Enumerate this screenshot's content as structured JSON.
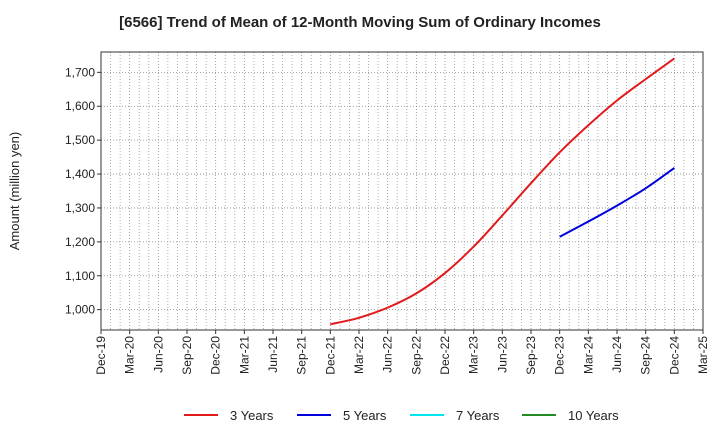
{
  "chart_data": {
    "type": "line",
    "title": "[6566]  Trend of Mean of 12-Month Moving Sum of Ordinary Incomes",
    "xlabel": "",
    "ylabel": "Amount (million yen)",
    "x_ticks": [
      "Dec-19",
      "Mar-20",
      "Jun-20",
      "Sep-20",
      "Dec-20",
      "Mar-21",
      "Jun-21",
      "Sep-21",
      "Dec-21",
      "Mar-22",
      "Jun-22",
      "Sep-22",
      "Dec-22",
      "Mar-23",
      "Jun-23",
      "Sep-23",
      "Dec-23",
      "Mar-24",
      "Jun-24",
      "Sep-24",
      "Dec-24",
      "Mar-25"
    ],
    "y_ticks": [
      1000,
      1100,
      1200,
      1300,
      1400,
      1500,
      1600,
      1700
    ],
    "y_tick_labels": [
      "1,000",
      "1,100",
      "1,200",
      "1,300",
      "1,400",
      "1,500",
      "1,600",
      "1,700"
    ],
    "ylim": [
      940,
      1760
    ],
    "grid": true,
    "legend_position": "bottom",
    "series": [
      {
        "name": "3 Years",
        "color": "#e31a1c",
        "points": [
          {
            "x": "Dec-21",
            "y": 957
          },
          {
            "x": "Mar-22",
            "y": 976
          },
          {
            "x": "Jun-22",
            "y": 1006
          },
          {
            "x": "Sep-22",
            "y": 1048
          },
          {
            "x": "Dec-22",
            "y": 1108
          },
          {
            "x": "Mar-23",
            "y": 1186
          },
          {
            "x": "Jun-23",
            "y": 1278
          },
          {
            "x": "Sep-23",
            "y": 1373
          },
          {
            "x": "Dec-23",
            "y": 1464
          },
          {
            "x": "Mar-24",
            "y": 1544
          },
          {
            "x": "Jun-24",
            "y": 1617
          },
          {
            "x": "Sep-24",
            "y": 1680
          },
          {
            "x": "Dec-24",
            "y": 1741
          }
        ]
      },
      {
        "name": "5 Years",
        "color": "#0000dd",
        "points": [
          {
            "x": "Dec-23",
            "y": 1215
          },
          {
            "x": "Mar-24",
            "y": 1260
          },
          {
            "x": "Jun-24",
            "y": 1307
          },
          {
            "x": "Sep-24",
            "y": 1358
          },
          {
            "x": "Dec-24",
            "y": 1418
          }
        ]
      },
      {
        "name": "7 Years",
        "color": "#00e5ee",
        "points": []
      },
      {
        "name": "10 Years",
        "color": "#228b22",
        "points": []
      }
    ]
  }
}
